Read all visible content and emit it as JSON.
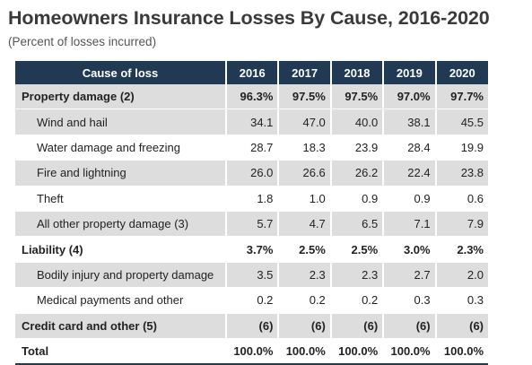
{
  "title": "Homeowners Insurance Losses By Cause, 2016-2020",
  "subtitle": "(Percent of losses incurred)",
  "table": {
    "headers": [
      "Cause of loss",
      "2016",
      "2017",
      "2018",
      "2019",
      "2020"
    ],
    "rows": [
      {
        "label": "Property damage (2)",
        "values": [
          "96.3%",
          "97.5%",
          "97.5%",
          "97.0%",
          "97.7%"
        ]
      },
      {
        "label": "Wind and hail",
        "values": [
          "34.1",
          "47.0",
          "40.0",
          "38.1",
          "45.5"
        ]
      },
      {
        "label": "Water damage and freezing",
        "values": [
          "28.7",
          "18.3",
          "23.9",
          "28.4",
          "19.9"
        ]
      },
      {
        "label": "Fire and lightning",
        "values": [
          "26.0",
          "26.6",
          "26.2",
          "22.4",
          "23.8"
        ]
      },
      {
        "label": "Theft",
        "values": [
          "1.8",
          "1.0",
          "0.9",
          "0.9",
          "0.6"
        ]
      },
      {
        "label": "All other property damage (3)",
        "values": [
          "5.7",
          "4.7",
          "6.5",
          "7.1",
          "7.9"
        ]
      },
      {
        "label": "Liability (4)",
        "values": [
          "3.7%",
          "2.5%",
          "2.5%",
          "3.0%",
          "2.3%"
        ]
      },
      {
        "label": "Bodily injury and property damage",
        "values": [
          "3.5",
          "2.3",
          "2.3",
          "2.7",
          "2.0"
        ]
      },
      {
        "label": "Medical payments and other",
        "values": [
          "0.2",
          "0.2",
          "0.2",
          "0.3",
          "0.3"
        ]
      },
      {
        "label": "Credit card and other (5)",
        "values": [
          "(6)",
          "(6)",
          "(6)",
          "(6)",
          "(6)"
        ]
      },
      {
        "label": "Total",
        "values": [
          "100.0%",
          "100.0%",
          "100.0%",
          "100.0%",
          "100.0%"
        ]
      }
    ]
  },
  "colors": {
    "header_bg": "#1f3a52",
    "row_shade": "#dddddd",
    "title": "#3a3a3a"
  }
}
